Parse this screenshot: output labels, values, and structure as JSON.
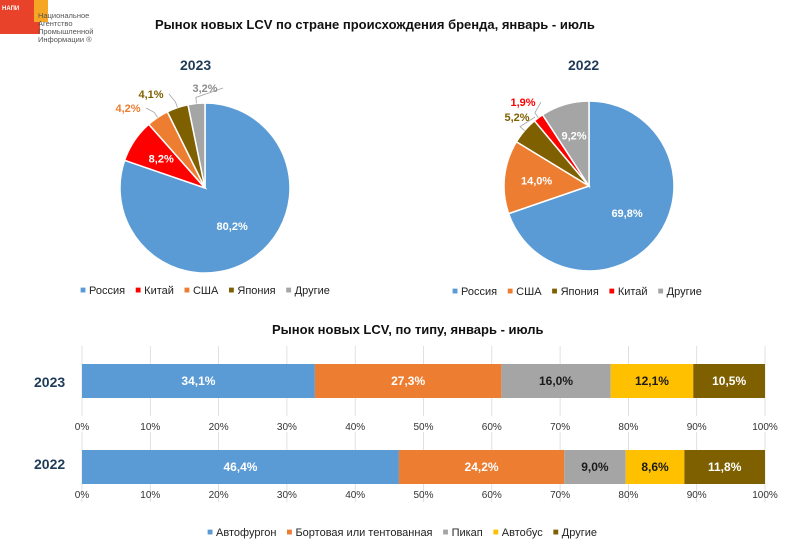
{
  "logo": {
    "tag": "НАПИ",
    "lines": [
      "Национальное",
      "Агентство",
      "Промышленной",
      "Информации ®"
    ]
  },
  "colors": {
    "russia": "#5b9bd5",
    "china": "#ff0000",
    "usa": "#ed7d31",
    "japan": "#7f6000",
    "other": "#a5a5a5",
    "van": "#5b9bd5",
    "flatbed": "#ed7d31",
    "pickup": "#a5a5a5",
    "bus": "#ffc000",
    "other_type": "#7f6000"
  },
  "chart_data": [
    {
      "type": "pie",
      "title": "Рынок новых LCV по стране происхождения бренда, январь - июль",
      "subtitle": "2023",
      "slices": [
        {
          "name": "Россия",
          "value": 80.2,
          "label": "80,2%",
          "color": "#5b9bd5"
        },
        {
          "name": "Китай",
          "value": 8.2,
          "label": "8,2%",
          "color": "#ff0000"
        },
        {
          "name": "США",
          "value": 4.2,
          "label": "4,2%",
          "color": "#ed7d31"
        },
        {
          "name": "Япония",
          "value": 4.1,
          "label": "4,1%",
          "color": "#7f6000"
        },
        {
          "name": "Другие",
          "value": 3.2,
          "label": "3,2%",
          "color": "#a5a5a5"
        }
      ],
      "legend": [
        "Россия",
        "Китай",
        "США",
        "Япония",
        "Другие"
      ]
    },
    {
      "type": "pie",
      "subtitle": "2022",
      "slices": [
        {
          "name": "Россия",
          "value": 69.8,
          "label": "69,8%",
          "color": "#5b9bd5"
        },
        {
          "name": "США",
          "value": 14.0,
          "label": "14,0%",
          "color": "#ed7d31"
        },
        {
          "name": "Япония",
          "value": 5.2,
          "label": "5,2%",
          "color": "#7f6000"
        },
        {
          "name": "Китай",
          "value": 1.9,
          "label": "1,9%",
          "color": "#ff0000"
        },
        {
          "name": "Другие",
          "value": 9.2,
          "label": "9,2%",
          "color": "#a5a5a5"
        }
      ],
      "legend": [
        "Россия",
        "США",
        "Япония",
        "Китай",
        "Другие"
      ]
    },
    {
      "type": "bar",
      "orientation": "horizontal-stacked-100",
      "title": "Рынок новых LCV, по типу, январь - июль",
      "xlim": [
        0,
        100
      ],
      "ticks": [
        "0%",
        "10%",
        "20%",
        "30%",
        "40%",
        "50%",
        "60%",
        "70%",
        "80%",
        "90%",
        "100%"
      ],
      "categories": [
        "2023",
        "2022"
      ],
      "series": [
        {
          "name": "Автофургон",
          "color": "#5b9bd5",
          "values": [
            34.1,
            46.4
          ],
          "labels": [
            "34,1%",
            "46,4%"
          ]
        },
        {
          "name": "Бортовая или тентованная",
          "color": "#ed7d31",
          "values": [
            27.3,
            24.2
          ],
          "labels": [
            "27,3%",
            "24,2%"
          ]
        },
        {
          "name": "Пикап",
          "color": "#a5a5a5",
          "values": [
            16.0,
            9.0
          ],
          "labels": [
            "16,0%",
            "9,0%"
          ]
        },
        {
          "name": "Автобус",
          "color": "#ffc000",
          "values": [
            12.1,
            8.6
          ],
          "labels": [
            "12,1%",
            "8,6%"
          ]
        },
        {
          "name": "Другие",
          "color": "#7f6000",
          "values": [
            10.5,
            11.8
          ],
          "labels": [
            "10,5%",
            "11,8%"
          ]
        }
      ]
    }
  ]
}
